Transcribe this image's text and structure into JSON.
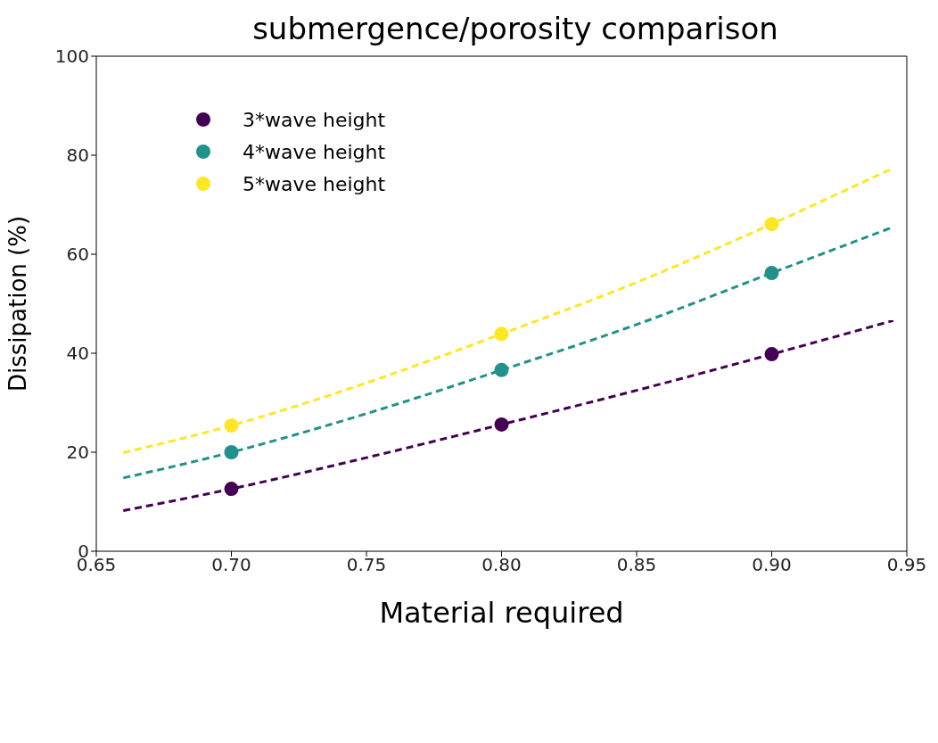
{
  "chart_data": {
    "type": "scatter",
    "title": "submergence/porosity comparison",
    "xlabel": "Material required",
    "ylabel": "Dissipation (%)",
    "xlim": [
      0.65,
      0.95
    ],
    "xticks": [
      {
        "value": 0.65,
        "label": "0.65"
      },
      {
        "value": 0.7,
        "label": "0.70"
      },
      {
        "value": 0.75,
        "label": "0.75"
      },
      {
        "value": 0.8,
        "label": "0.80"
      },
      {
        "value": 0.85,
        "label": "0.85"
      },
      {
        "value": 0.9,
        "label": "0.90"
      },
      {
        "value": 0.95,
        "label": "0.95"
      }
    ],
    "ylim": [
      0,
      100
    ],
    "yticks": [
      0,
      20,
      40,
      60,
      80,
      100
    ],
    "grid": false,
    "legend": "top left",
    "series": [
      {
        "name": "3*wave height",
        "marker": "circle",
        "color": "#440154",
        "x": [
          0.7,
          0.8,
          0.9
        ],
        "values": [
          12.6,
          25.6,
          39.8
        ]
      },
      {
        "name": "4*wave height",
        "marker": "circle",
        "color": "#21918c",
        "x": [
          0.7,
          0.8,
          0.9
        ],
        "values": [
          20.0,
          36.6,
          56.2
        ]
      },
      {
        "name": "5*wave height",
        "marker": "circle",
        "color": "#fde725",
        "x": [
          0.7,
          0.8,
          0.9
        ],
        "values": [
          25.4,
          43.9,
          66.1
        ]
      },
      {
        "type": "line",
        "marker": "none",
        "line_style": "dashed",
        "color": "#440154",
        "x": [
          0.66,
          0.7,
          0.75,
          0.8,
          0.85,
          0.9,
          0.945
        ],
        "values": [
          8.2,
          12.6,
          18.9,
          25.6,
          32.5,
          39.8,
          46.6
        ]
      },
      {
        "type": "line",
        "marker": "none",
        "line_style": "dashed",
        "color": "#21918c",
        "x": [
          0.66,
          0.7,
          0.75,
          0.8,
          0.85,
          0.9,
          0.945
        ],
        "values": [
          14.8,
          20.0,
          27.8,
          36.6,
          45.8,
          56.2,
          65.5
        ]
      },
      {
        "type": "line",
        "marker": "none",
        "line_style": "dashed",
        "color": "#fde725",
        "x": [
          0.66,
          0.7,
          0.75,
          0.8,
          0.85,
          0.9,
          0.945
        ],
        "values": [
          19.9,
          25.4,
          34.0,
          43.9,
          54.3,
          66.1,
          77.4
        ]
      }
    ]
  }
}
